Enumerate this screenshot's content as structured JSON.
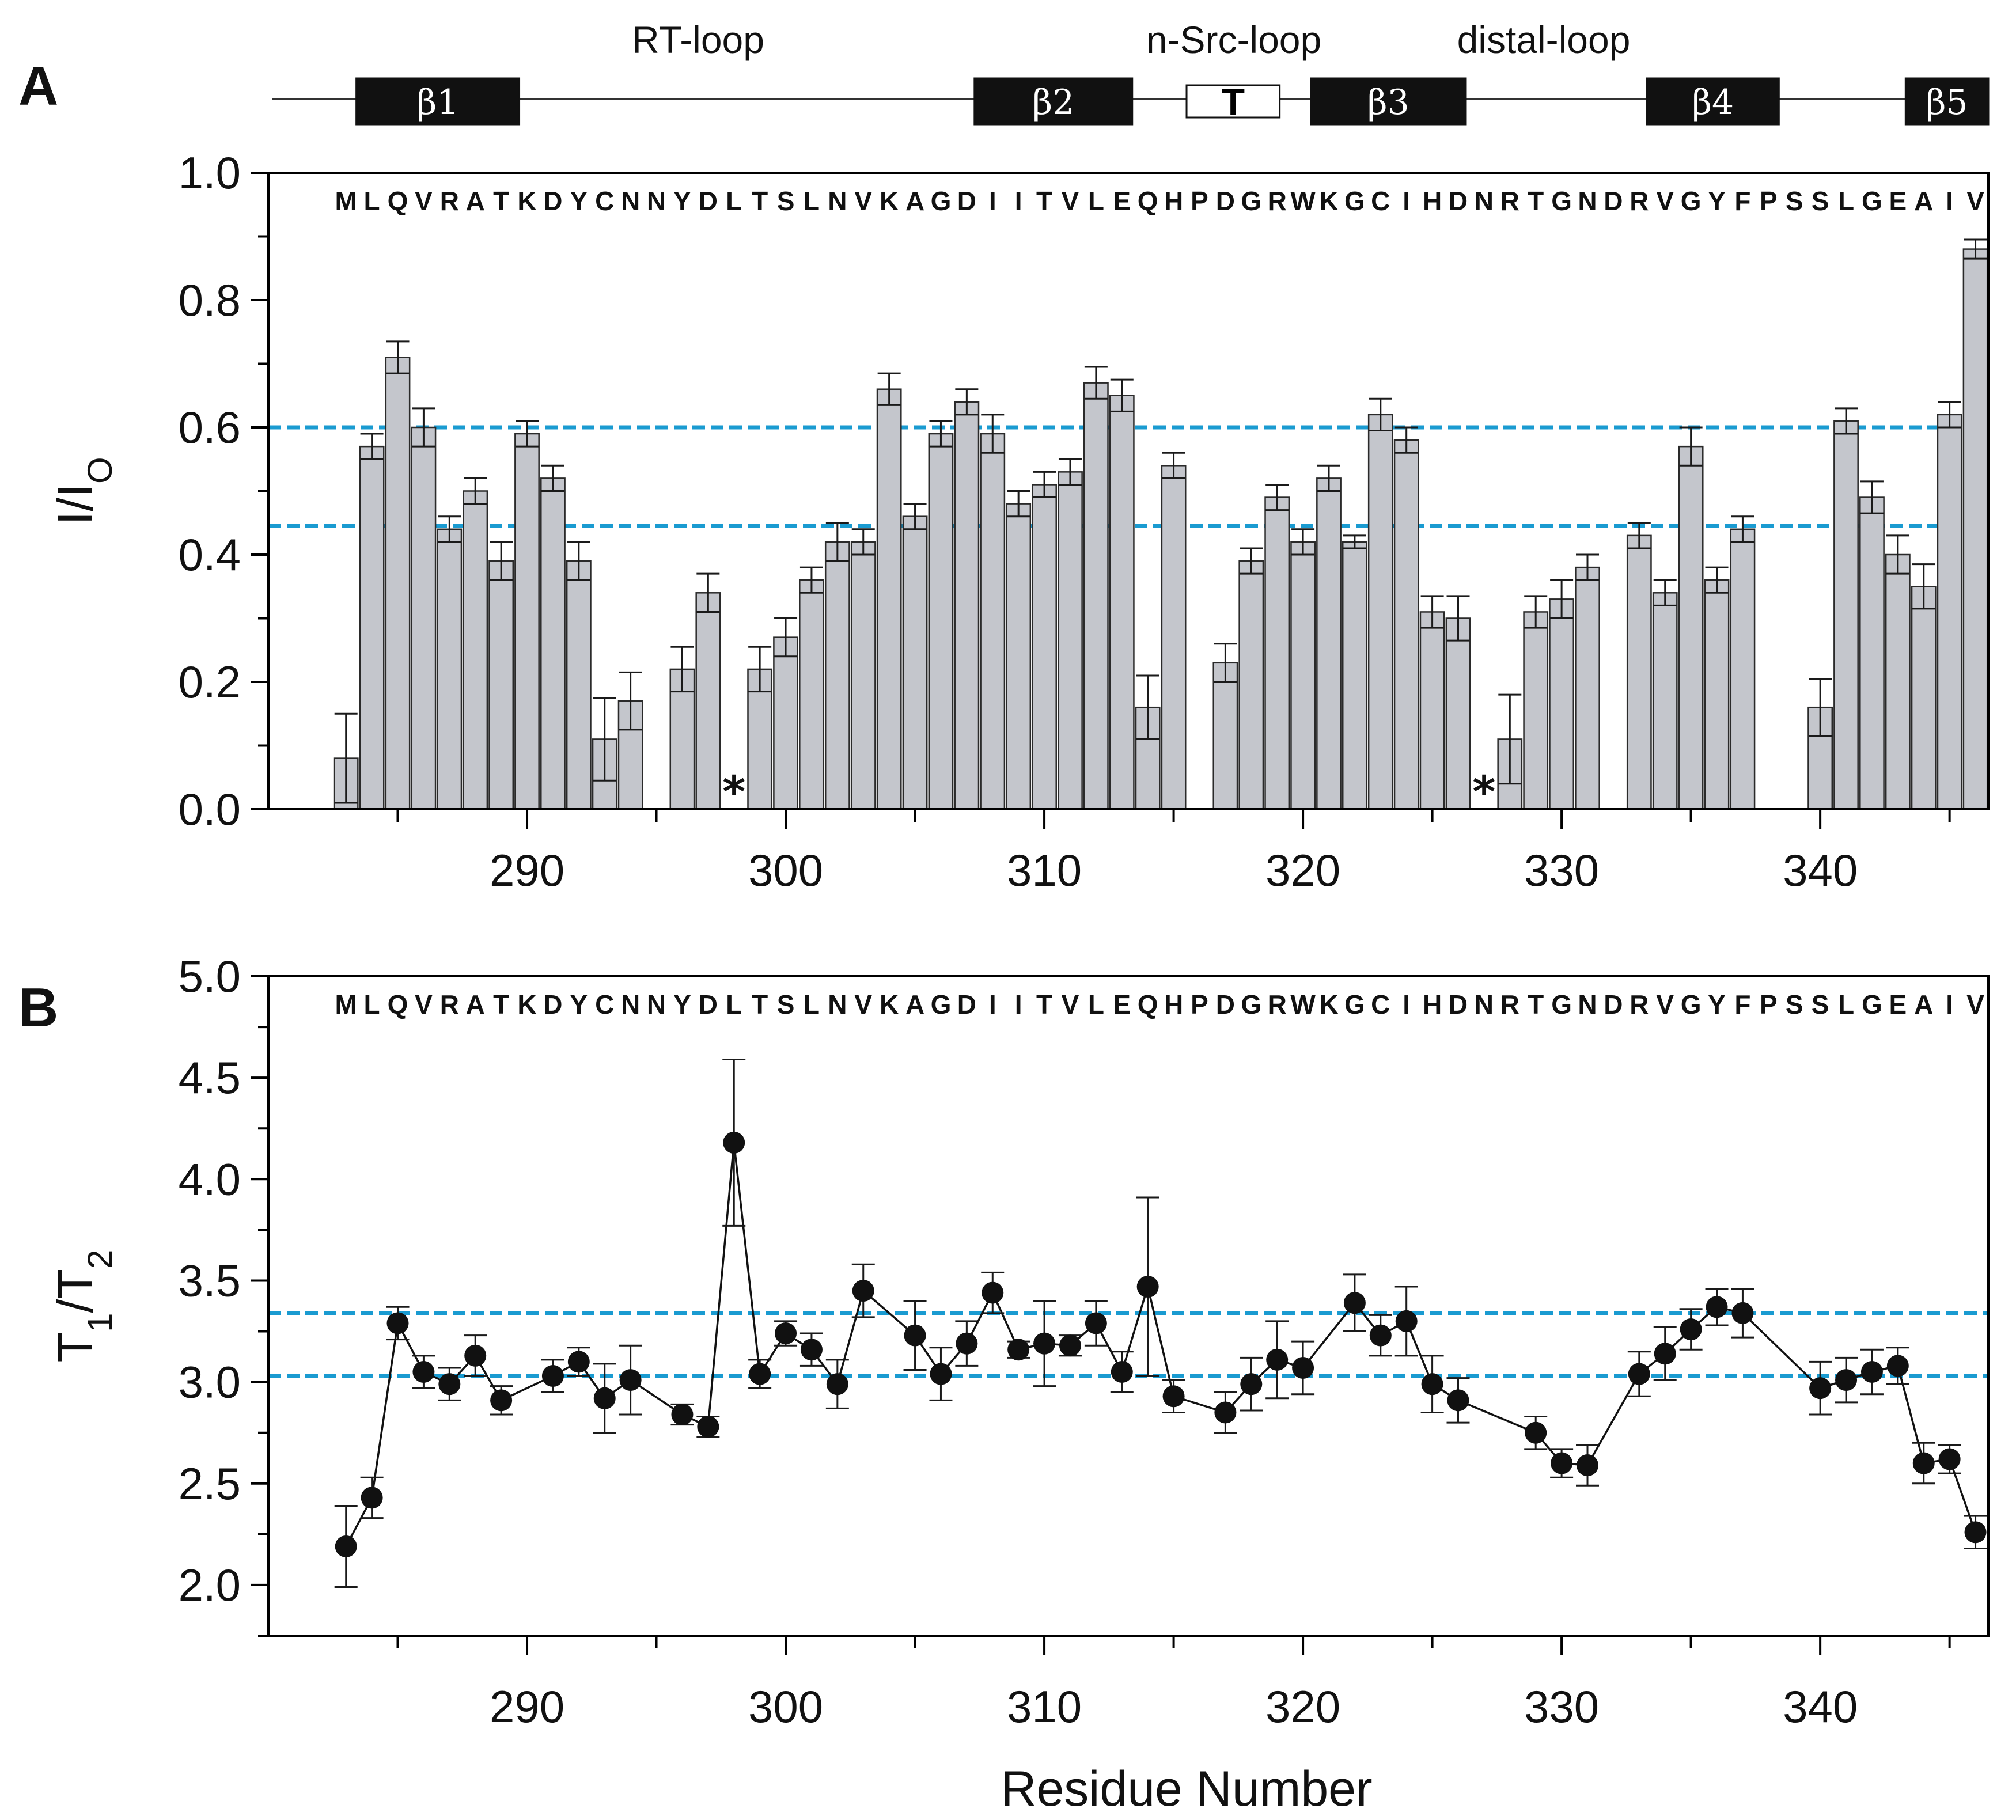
{
  "figure": {
    "panel_a_letter": "A",
    "panel_b_letter": "B"
  },
  "colors": {
    "bar_fill": "#c4c6cc",
    "reference_line": "#1a9bd1",
    "points": "#111111"
  },
  "secondary_structure": {
    "loops": [
      {
        "name": "RT-loop",
        "center": 298.5
      },
      {
        "name": "n-Src-loop",
        "center": 319.5
      },
      {
        "name": "distal-loop",
        "center": 328.5
      }
    ],
    "elements": [
      {
        "label": "β1",
        "type": "strand",
        "start": 283.4,
        "end": 289.7
      },
      {
        "label": "β2",
        "type": "strand",
        "start": 307.3,
        "end": 313.4
      },
      {
        "label": "T",
        "type": "turn",
        "start": 315.5,
        "end": 319.1
      },
      {
        "label": "β3",
        "type": "strand",
        "start": 320.3,
        "end": 326.3
      },
      {
        "label": "β4",
        "type": "strand",
        "start": 333.3,
        "end": 338.4
      },
      {
        "label": "β5",
        "type": "strand",
        "start": 343.3,
        "end": 346.5
      }
    ]
  },
  "sequence": {
    "start": 283,
    "letters": [
      "M",
      "L",
      "Q",
      "V",
      "R",
      "A",
      "T",
      "K",
      "D",
      "Y",
      "C",
      "N",
      "N",
      "Y",
      "D",
      "L",
      "T",
      "S",
      "L",
      "N",
      "V",
      "K",
      "A",
      "G",
      "D",
      "I",
      "I",
      "T",
      "V",
      "L",
      "E",
      "Q",
      "H",
      "P",
      "D",
      "G",
      "R",
      "W",
      "K",
      "G",
      "C",
      "I",
      "H",
      "D",
      "N",
      "R",
      "T",
      "G",
      "N",
      "D",
      "R",
      "V",
      "G",
      "Y",
      "F",
      "P",
      "S",
      "S",
      "L",
      "G",
      "E",
      "A",
      "I",
      "V"
    ]
  },
  "chart_data": [
    {
      "type": "bar",
      "panel": "A",
      "title": "",
      "xlabel": "",
      "ylabel": "I/I",
      "ylabel_sub": "O",
      "xlim": [
        280,
        346.5
      ],
      "ylim": [
        0.0,
        1.0
      ],
      "x_ticks": [
        290,
        300,
        310,
        320,
        330,
        340
      ],
      "y_ticks": [
        0.0,
        0.2,
        0.4,
        0.6,
        0.8,
        1.0
      ],
      "y_tick_labels": [
        "0.0",
        "0.2",
        "0.4",
        "0.6",
        "0.8",
        "1.0"
      ],
      "reference_lines": [
        0.6,
        0.445
      ],
      "missing_markers": [
        {
          "residue": 298,
          "label": "*"
        },
        {
          "residue": 327,
          "label": "*"
        }
      ],
      "x": [
        283,
        284,
        285,
        286,
        287,
        288,
        289,
        290,
        291,
        292,
        293,
        294,
        296,
        297,
        299,
        300,
        301,
        302,
        303,
        304,
        305,
        306,
        307,
        308,
        309,
        310,
        311,
        312,
        313,
        314,
        315,
        317,
        318,
        319,
        320,
        321,
        322,
        323,
        324,
        325,
        326,
        328,
        329,
        330,
        331,
        333,
        334,
        335,
        336,
        337,
        340,
        341,
        342,
        343,
        344,
        345,
        346
      ],
      "values": [
        0.08,
        0.57,
        0.71,
        0.6,
        0.44,
        0.5,
        0.39,
        0.59,
        0.52,
        0.39,
        0.11,
        0.17,
        0.22,
        0.34,
        0.22,
        0.27,
        0.36,
        0.42,
        0.42,
        0.66,
        0.46,
        0.59,
        0.64,
        0.59,
        0.48,
        0.51,
        0.53,
        0.67,
        0.65,
        0.16,
        0.54,
        0.23,
        0.39,
        0.49,
        0.42,
        0.52,
        0.42,
        0.62,
        0.58,
        0.31,
        0.3,
        0.11,
        0.31,
        0.33,
        0.38,
        0.43,
        0.34,
        0.57,
        0.36,
        0.44,
        0.16,
        0.61,
        0.49,
        0.4,
        0.35,
        0.62,
        0.88
      ],
      "errors": [
        0.07,
        0.02,
        0.025,
        0.03,
        0.02,
        0.02,
        0.03,
        0.02,
        0.02,
        0.03,
        0.065,
        0.045,
        0.035,
        0.03,
        0.035,
        0.03,
        0.02,
        0.03,
        0.02,
        0.025,
        0.02,
        0.02,
        0.02,
        0.03,
        0.02,
        0.02,
        0.02,
        0.025,
        0.025,
        0.05,
        0.02,
        0.03,
        0.02,
        0.02,
        0.02,
        0.02,
        0.01,
        0.025,
        0.02,
        0.025,
        0.035,
        0.07,
        0.025,
        0.03,
        0.02,
        0.02,
        0.02,
        0.03,
        0.02,
        0.02,
        0.045,
        0.02,
        0.025,
        0.03,
        0.035,
        0.02,
        0.015
      ]
    },
    {
      "type": "scatter",
      "panel": "B",
      "title": "",
      "xlabel": "Residue Number",
      "ylabel": "T",
      "ylabel_sub1": "1",
      "ylabel_mid": "/T",
      "ylabel_sub2": "2",
      "xlim": [
        280,
        346.5
      ],
      "ylim": [
        1.75,
        5.0
      ],
      "x_ticks": [
        290,
        300,
        310,
        320,
        330,
        340
      ],
      "y_ticks": [
        2.0,
        2.5,
        3.0,
        3.5,
        4.0,
        4.5,
        5.0
      ],
      "y_tick_labels": [
        "2.0",
        "2.5",
        "3.0",
        "3.5",
        "4.0",
        "4.5",
        "5.0"
      ],
      "reference_lines": [
        3.34,
        3.03
      ],
      "x": [
        283,
        284,
        285,
        286,
        287,
        288,
        289,
        291,
        292,
        293,
        294,
        296,
        297,
        298,
        299,
        300,
        301,
        302,
        303,
        305,
        306,
        307,
        308,
        309,
        310,
        311,
        312,
        313,
        314,
        315,
        317,
        318,
        319,
        320,
        322,
        323,
        324,
        325,
        326,
        329,
        330,
        331,
        333,
        334,
        335,
        336,
        337,
        340,
        341,
        342,
        343,
        344,
        345,
        346
      ],
      "values": [
        2.19,
        2.43,
        3.29,
        3.05,
        2.99,
        3.13,
        2.91,
        3.03,
        3.1,
        2.92,
        3.01,
        2.84,
        2.78,
        4.18,
        3.04,
        3.24,
        3.16,
        2.99,
        3.45,
        3.23,
        3.04,
        3.19,
        3.44,
        3.16,
        3.19,
        3.18,
        3.29,
        3.05,
        3.47,
        2.93,
        2.85,
        2.99,
        3.11,
        3.07,
        3.39,
        3.23,
        3.3,
        2.99,
        2.91,
        2.75,
        2.6,
        2.59,
        3.04,
        3.14,
        3.26,
        3.37,
        3.34,
        2.97,
        3.01,
        3.05,
        3.08,
        2.6,
        2.62,
        2.26
      ],
      "errors": [
        0.2,
        0.1,
        0.08,
        0.08,
        0.08,
        0.1,
        0.07,
        0.08,
        0.07,
        0.17,
        0.17,
        0.05,
        0.05,
        0.41,
        0.07,
        0.06,
        0.08,
        0.12,
        0.13,
        0.17,
        0.13,
        0.11,
        0.1,
        0.04,
        0.21,
        0.05,
        0.11,
        0.1,
        0.44,
        0.08,
        0.1,
        0.13,
        0.19,
        0.13,
        0.14,
        0.1,
        0.17,
        0.14,
        0.11,
        0.08,
        0.07,
        0.1,
        0.11,
        0.13,
        0.1,
        0.09,
        0.12,
        0.13,
        0.11,
        0.11,
        0.09,
        0.1,
        0.07,
        0.08
      ]
    }
  ]
}
